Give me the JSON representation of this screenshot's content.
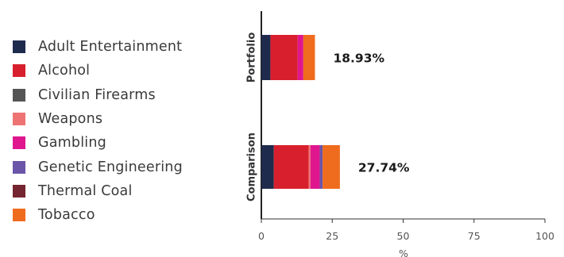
{
  "chart_data": {
    "type": "bar",
    "orientation": "horizontal",
    "stacked": true,
    "categories": [
      "Portfolio",
      "Comparison"
    ],
    "totals_labels": [
      "18.93%",
      "27.74%"
    ],
    "series": [
      {
        "name": "Adult Entertainment",
        "color": "#1f2b4d",
        "values": [
          3.2,
          4.4
        ]
      },
      {
        "name": "Alcohol",
        "color": "#d81f2d",
        "values": [
          9.6,
          12.3
        ]
      },
      {
        "name": "Civilian Firearms",
        "color": "#555555",
        "values": [
          0,
          0
        ]
      },
      {
        "name": "Weapons",
        "color": "#ee7373",
        "values": [
          0,
          0.6
        ]
      },
      {
        "name": "Gambling",
        "color": "#e0168e",
        "values": [
          2.0,
          3.3
        ]
      },
      {
        "name": "Genetic Engineering",
        "color": "#6a55a8",
        "values": [
          0,
          1.0
        ]
      },
      {
        "name": "Thermal Coal",
        "color": "#74252f",
        "values": [
          0,
          0
        ]
      },
      {
        "name": "Tobacco",
        "color": "#ef6b1d",
        "values": [
          4.1,
          6.1
        ]
      }
    ],
    "xlim": [
      0,
      100
    ],
    "xticks": [
      "0",
      "25",
      "50",
      "75",
      "100"
    ],
    "xlabel": "%",
    "ylabel": "",
    "legend_position": "left",
    "grid": false
  }
}
